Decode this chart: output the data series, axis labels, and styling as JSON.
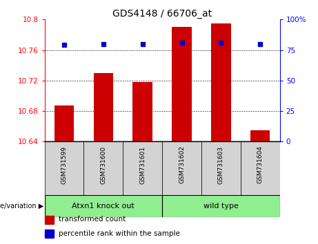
{
  "title": "GDS4148 / 66706_at",
  "categories": [
    "GSM731599",
    "GSM731600",
    "GSM731601",
    "GSM731602",
    "GSM731603",
    "GSM731604"
  ],
  "bar_values": [
    10.687,
    10.73,
    10.718,
    10.79,
    10.795,
    10.655
  ],
  "percentile_values": [
    79,
    80,
    80,
    81,
    81,
    80
  ],
  "bar_color": "#cc0000",
  "dot_color": "#0000cc",
  "ylim_left": [
    10.64,
    10.8
  ],
  "ylim_right": [
    0,
    100
  ],
  "yticks_left": [
    10.64,
    10.68,
    10.72,
    10.76,
    10.8
  ],
  "ytick_labels_left": [
    "10.64",
    "10.68",
    "10.72",
    "10.76",
    "10.8"
  ],
  "yticks_right": [
    0,
    25,
    50,
    75,
    100
  ],
  "ytick_labels_right": [
    "0",
    "25",
    "50",
    "75",
    "100%"
  ],
  "grid_values": [
    10.68,
    10.72,
    10.76
  ],
  "group_labels": [
    "Atxn1 knock out",
    "wild type"
  ],
  "group_ranges": [
    [
      0,
      3
    ],
    [
      3,
      6
    ]
  ],
  "group_colors": [
    "#90ee90",
    "#90ee90"
  ],
  "genotype_label": "genotype/variation ▶",
  "legend_items": [
    {
      "label": "transformed count",
      "color": "#cc0000"
    },
    {
      "label": "percentile rank within the sample",
      "color": "#0000cc"
    }
  ],
  "bar_width": 0.5,
  "xtick_bg": "#d3d3d3"
}
